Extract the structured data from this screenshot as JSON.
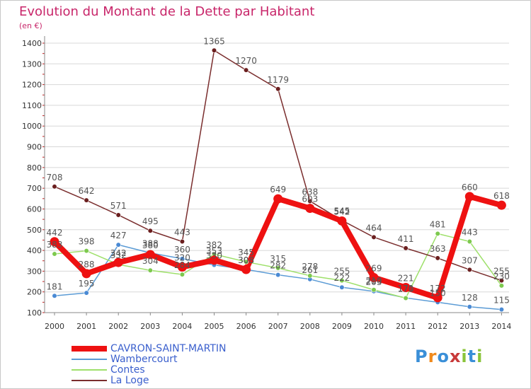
{
  "title": "Evolution du Montant de la Dette par Habitant",
  "subtitle": "(en €)",
  "brand": "Proxiti",
  "colors": {
    "title": "#c8266a",
    "legend_text": "#3a5fcd",
    "grid": "#d8d8d8",
    "axis_text": "#333333",
    "data_label": "#555555"
  },
  "chart_data": {
    "type": "line",
    "title": "Evolution du Montant de la Dette par Habitant",
    "subtitle": "(en €)",
    "x": [
      "2000",
      "2001",
      "2002",
      "2003",
      "2004",
      "2005",
      "2006",
      "2007",
      "2008",
      "2009",
      "2010",
      "2011",
      "2012",
      "2013",
      "2014"
    ],
    "yticks": [
      100,
      200,
      300,
      400,
      500,
      600,
      700,
      800,
      900,
      1000,
      1100,
      1200,
      1300,
      1400
    ],
    "ylim": [
      100,
      1400
    ],
    "grid": true,
    "legend_position": "bottom-left",
    "series": [
      {
        "name": "Wambercourt",
        "color": "#5b9bd5",
        "marker": "#4a8ad4",
        "width": 1.5,
        "values": [
          181,
          195,
          427,
          388,
          360,
          330,
          308,
          282,
          261,
          222,
          203,
          171,
          150,
          128,
          115
        ],
        "labels": [
          "181",
          "195",
          "427",
          "388",
          "360",
          "330",
          "308",
          "282",
          "261",
          "222",
          "203",
          "171",
          "150",
          "128",
          "115"
        ]
      },
      {
        "name": "Contes",
        "color": "#9ee06a",
        "marker": "#7dc94e",
        "width": 1.5,
        "values": [
          383,
          398,
          332,
          304,
          284,
          382,
          345,
          315,
          278,
          255,
          210,
          170,
          481,
          443,
          230
        ],
        "labels": [
          "383",
          "398",
          "332",
          "304",
          "284",
          "382",
          "345",
          "315",
          "278",
          "255",
          "210",
          "170",
          "481",
          "443",
          "230"
        ]
      },
      {
        "name": "La Loge",
        "color": "#7a2d2d",
        "marker": "#6b1f1f",
        "width": 1.5,
        "values": [
          708,
          642,
          571,
          495,
          443,
          1365,
          1270,
          1179,
          638,
          545,
          464,
          411,
          363,
          307,
          255
        ],
        "labels": [
          "708",
          "642",
          "571",
          "495",
          "443",
          "1365",
          "1270",
          "1179",
          "638",
          "545",
          "464",
          "411",
          "363",
          "307",
          "255"
        ]
      },
      {
        "name": "CAVRON-SAINT-MARTIN",
        "color": "#ee1111",
        "marker": "#ee1111",
        "width": 8,
        "values": [
          442,
          288,
          342,
          380,
          320,
          353,
          308,
          649,
          603,
          542,
          269,
          221,
          172,
          660,
          618
        ],
        "labels": [
          "442",
          "288",
          "342",
          "380",
          "320",
          "353",
          "308",
          "649",
          "603",
          "542",
          "269",
          "221",
          "172",
          "660",
          "618"
        ]
      }
    ],
    "legend_order": [
      "CAVRON-SAINT-MARTIN",
      "Wambercourt",
      "Contes",
      "La Loge"
    ]
  }
}
